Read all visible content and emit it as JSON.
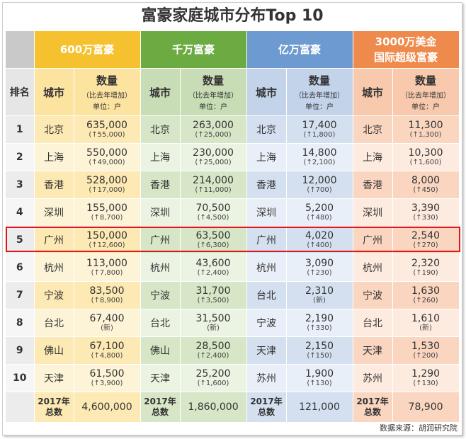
{
  "title": "富豪家庭城市分布Top 10",
  "groups": [
    {
      "label": "600万富豪"
    },
    {
      "label": "千万富豪"
    },
    {
      "label": "亿万富豪"
    },
    {
      "label": "3000万美金",
      "label2": "国际超级富豪"
    }
  ],
  "subheader": {
    "rank": "排名",
    "city": "城市",
    "qty": "数量",
    "qty_sub": "（比去年增加）",
    "unit": "单位：户"
  },
  "rows": [
    {
      "rank": "1",
      "cells": [
        {
          "city": "北京",
          "num": "635,000",
          "chg": "(↑55,000)"
        },
        {
          "city": "北京",
          "num": "263,000",
          "chg": "(↑25,000)"
        },
        {
          "city": "北京",
          "num": "17,400",
          "chg": "(↑1,800)"
        },
        {
          "city": "北京",
          "num": "11,300",
          "chg": "(↑1,300)"
        }
      ]
    },
    {
      "rank": "2",
      "cells": [
        {
          "city": "上海",
          "num": "550,000",
          "chg": "(↑49,000)"
        },
        {
          "city": "上海",
          "num": "230,000",
          "chg": "(↑25,000)"
        },
        {
          "city": "上海",
          "num": "14,800",
          "chg": "(↑2,100)"
        },
        {
          "city": "上海",
          "num": "10,300",
          "chg": "(↑1,600)"
        }
      ]
    },
    {
      "rank": "3",
      "cells": [
        {
          "city": "香港",
          "num": "528,000",
          "chg": "(↑17,000)"
        },
        {
          "city": "香港",
          "num": "214,000",
          "chg": "(↑11,000)"
        },
        {
          "city": "香港",
          "num": "12,000",
          "chg": "(↑700)"
        },
        {
          "city": "香港",
          "num": "8,000",
          "chg": "(↑450)"
        }
      ]
    },
    {
      "rank": "4",
      "cells": [
        {
          "city": "深圳",
          "num": "155,000",
          "chg": "(↑8,700)"
        },
        {
          "city": "深圳",
          "num": "70,500",
          "chg": "(↑4,500)"
        },
        {
          "city": "深圳",
          "num": "5,200",
          "chg": "(↑480)"
        },
        {
          "city": "深圳",
          "num": "3,390",
          "chg": "(↑330)"
        }
      ]
    },
    {
      "rank": "5",
      "cells": [
        {
          "city": "广州",
          "num": "150,000",
          "chg": "(↑12,600)"
        },
        {
          "city": "广州",
          "num": "63,500",
          "chg": "(↑6,300)"
        },
        {
          "city": "广州",
          "num": "4,020",
          "chg": "(↑400)"
        },
        {
          "city": "广州",
          "num": "2,540",
          "chg": "(↑270)"
        }
      ]
    },
    {
      "rank": "6",
      "cells": [
        {
          "city": "杭州",
          "num": "113,000",
          "chg": "(↑7,800)"
        },
        {
          "city": "杭州",
          "num": "43,600",
          "chg": "(↑2,400)"
        },
        {
          "city": "杭州",
          "num": "3,090",
          "chg": "(↑230)"
        },
        {
          "city": "杭州",
          "num": "2,320",
          "chg": "(↑190)"
        }
      ]
    },
    {
      "rank": "7",
      "cells": [
        {
          "city": "宁波",
          "num": "83,500",
          "chg": "(↑8,900)"
        },
        {
          "city": "宁波",
          "num": "31,700",
          "chg": "(↑3,500)"
        },
        {
          "city": "台北",
          "num": "2,310",
          "chg": "(新)"
        },
        {
          "city": "宁波",
          "num": "1,630",
          "chg": "(↑260)"
        }
      ]
    },
    {
      "rank": "8",
      "cells": [
        {
          "city": "台北",
          "num": "67,400",
          "chg": "(新)"
        },
        {
          "city": "台北",
          "num": "31,500",
          "chg": "(新)"
        },
        {
          "city": "宁波",
          "num": "2,190",
          "chg": "(↑330)"
        },
        {
          "city": "台北",
          "num": "1,610",
          "chg": "(新)"
        }
      ]
    },
    {
      "rank": "9",
      "cells": [
        {
          "city": "佛山",
          "num": "67,100",
          "chg": "(↑4,800)"
        },
        {
          "city": "佛山",
          "num": "28,500",
          "chg": "(↑2,400)"
        },
        {
          "city": "天津",
          "num": "2,150",
          "chg": "(↑150)"
        },
        {
          "city": "天津",
          "num": "1,530",
          "chg": "(↑200)"
        }
      ]
    },
    {
      "rank": "10",
      "cells": [
        {
          "city": "天津",
          "num": "61,500",
          "chg": "(↑3,900)"
        },
        {
          "city": "天津",
          "num": "25,200",
          "chg": "(↑1,600)"
        },
        {
          "city": "苏州",
          "num": "1,900",
          "chg": "(↑130)"
        },
        {
          "city": "苏州",
          "num": "1,290",
          "chg": "(↑130)"
        }
      ]
    }
  ],
  "totals": {
    "label1": "2017年",
    "label2": "总数",
    "values": [
      "4,600,000",
      "1,860,000",
      "121,000",
      "78,900"
    ]
  },
  "source": "数据来源：胡润研究院",
  "colors": {
    "group1": "#f5c12f",
    "group2": "#6bab41",
    "group3": "#6d9ad0",
    "group4": "#ee8a4c",
    "highlight": "#e0161a"
  }
}
